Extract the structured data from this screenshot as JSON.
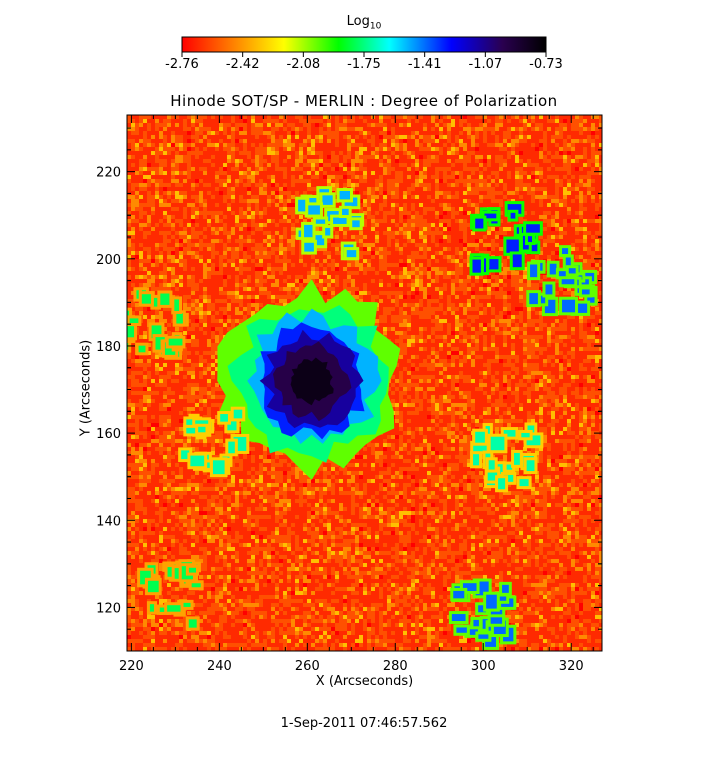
{
  "chart_data": {
    "type": "heatmap",
    "title": "Hinode SOT/SP - MERLIN : Degree of Polarization",
    "xlabel": "X (Arcseconds)",
    "ylabel": "Y (Arcseconds)",
    "xlim": [
      219,
      327
    ],
    "ylim": [
      110,
      233
    ],
    "x_ticks": [
      220,
      240,
      260,
      280,
      300,
      320
    ],
    "y_ticks": [
      120,
      140,
      160,
      180,
      200,
      220
    ],
    "colorbar": {
      "title_main": "Log",
      "title_sub": "10",
      "range": [
        -2.76,
        -0.73
      ],
      "tick_labels": [
        "-2.76",
        "-2.42",
        "-2.08",
        "-1.75",
        "-1.41",
        "-1.07",
        "-0.73"
      ],
      "colors": [
        "#ff0000",
        "#ff8000",
        "#ffff00",
        "#00ff00",
        "#00ffff",
        "#0000ff",
        "#2a0050",
        "#000000"
      ]
    },
    "features": [
      {
        "kind": "sunspot",
        "x": 261,
        "y": 172,
        "radius": 9,
        "value": -0.9
      },
      {
        "kind": "network",
        "x": 265,
        "y": 208,
        "value": -1.5
      },
      {
        "kind": "network",
        "x": 305,
        "y": 205,
        "value": -1.3
      },
      {
        "kind": "network",
        "x": 318,
        "y": 195,
        "value": -1.4
      },
      {
        "kind": "network",
        "x": 305,
        "y": 155,
        "value": -1.7
      },
      {
        "kind": "network",
        "x": 300,
        "y": 118,
        "value": -1.4
      },
      {
        "kind": "network",
        "x": 230,
        "y": 123,
        "value": -1.8
      },
      {
        "kind": "network",
        "x": 238,
        "y": 158,
        "value": -1.7
      },
      {
        "kind": "network",
        "x": 225,
        "y": 185,
        "value": -1.8
      }
    ]
  },
  "timestamp": "1-Sep-2011 07:46:57.562"
}
